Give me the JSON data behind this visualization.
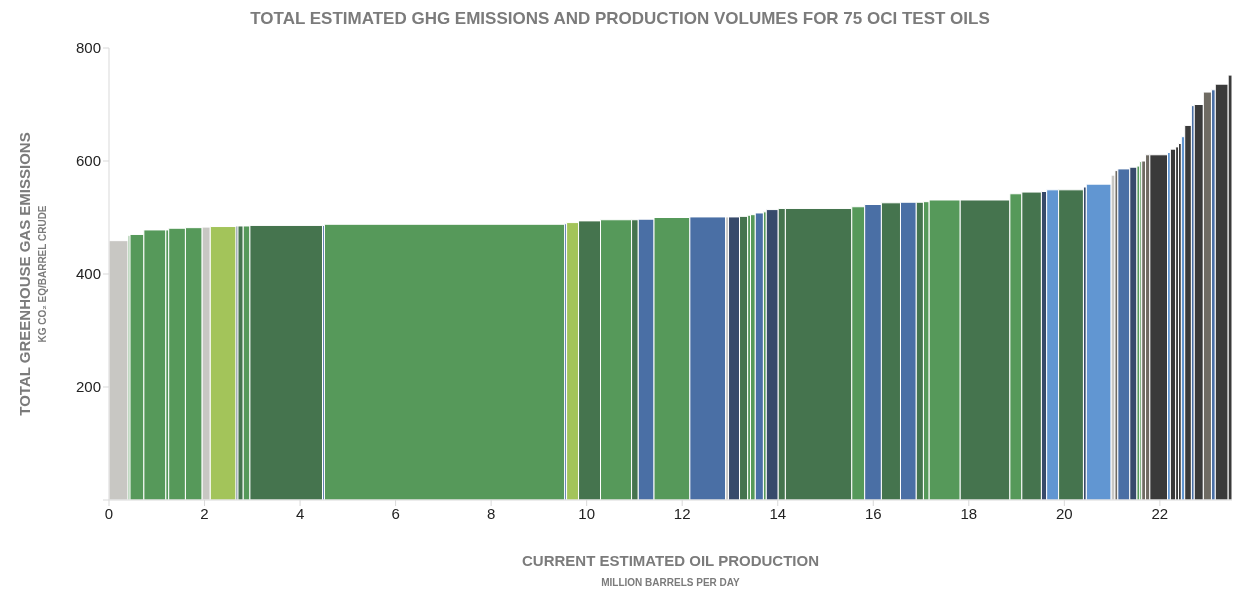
{
  "chart_data": {
    "type": "histogram",
    "title": "TOTAL ESTIMATED GHG EMISSIONS AND PRODUCTION VOLUMES FOR 75 OCI TEST OILS",
    "xlabel": "CURRENT ESTIMATED OIL PRODUCTION\nMILLION BARRELS PER DAY",
    "ylabel": "TOTAL GREENHOUSE GAS EMISSIONS\nKG CO₂ EQ/BARREL CRUDE",
    "bins": [
      0,
      0.4,
      0.44,
      0.73,
      1.19,
      1.25,
      1.6,
      1.95,
      2.12,
      2.66,
      2.7,
      2.81,
      2.95,
      4.47,
      4.51,
      9.54,
      9.58,
      9.83,
      10.29,
      10.94,
      11.08,
      11.41,
      12.16,
      12.91,
      12.97,
      13.2,
      13.37,
      13.43,
      13.53,
      13.7,
      13.76,
      14.01,
      14.16,
      15.55,
      15.82,
      16.17,
      16.57,
      16.9,
      17.05,
      17.17,
      17.82,
      18.86,
      19.11,
      19.52,
      19.63,
      19.88,
      20.4,
      20.46,
      20.98,
      21.06,
      21.12,
      21.37,
      21.52,
      21.58,
      21.62,
      21.7,
      21.79,
      22.16,
      22.22,
      22.33,
      22.39,
      22.45,
      22.52,
      22.66,
      22.72,
      22.91,
      23.08,
      23.16,
      23.43,
      23.51
    ],
    "values": [
      459,
      468,
      470,
      478,
      478,
      481,
      482,
      483,
      484,
      485,
      485,
      485,
      486,
      486,
      488,
      489,
      491,
      494,
      496,
      496,
      497,
      500,
      501,
      501,
      501,
      502,
      504,
      505,
      508,
      510,
      514,
      516,
      516,
      519,
      523,
      526,
      527,
      527,
      528,
      531,
      531,
      542,
      545,
      546,
      549,
      549,
      554,
      559,
      575,
      583,
      586,
      589,
      591,
      599,
      600,
      611,
      611,
      615,
      621,
      625,
      631,
      643,
      663,
      698,
      700,
      722,
      726,
      736,
      752
    ],
    "colors": [
      "#c8c7c3",
      "#56995a",
      "#56995a",
      "#56995a",
      "#56995a",
      "#56995a",
      "#56995a",
      "#c8c7c3",
      "#a3c45a",
      "#374a6b",
      "#45744e",
      "#56995a",
      "#45744e",
      "#4a6fa5",
      "#56995a",
      "#4a6fa5",
      "#a3c45a",
      "#45744e",
      "#56995a",
      "#45744e",
      "#4a6fa5",
      "#56995a",
      "#4a6fa5",
      "#c8c7c3",
      "#374a6b",
      "#45744e",
      "#56995a",
      "#56995a",
      "#4a6fa5",
      "#56995a",
      "#374a6b",
      "#45744e",
      "#45744e",
      "#56995a",
      "#4a6fa5",
      "#45744e",
      "#4a6fa5",
      "#45744e",
      "#56995a",
      "#56995a",
      "#45744e",
      "#56995a",
      "#45744e",
      "#374a6b",
      "#6196d2",
      "#45744e",
      "#374a6b",
      "#6196d2",
      "#c8c7c3",
      "#6f6b63",
      "#4a6fa5",
      "#374a6b",
      "#56995a",
      "#56995a",
      "#6f6b63",
      "#6f6b63",
      "#3a3a3a",
      "#6196d2",
      "#3a3a3a",
      "#3a3a3a",
      "#3a3a3a",
      "#6196d2",
      "#3a3a3a",
      "#4a6fa5",
      "#3a3a3a",
      "#6f6b63",
      "#4a6fa5",
      "#3a3a3a",
      "#3a3a3a"
    ],
    "xlim": [
      0,
      23.51
    ],
    "xticks": [
      0,
      2,
      4,
      6,
      8,
      10,
      12,
      14,
      16,
      18,
      20,
      22
    ],
    "ylim": [
      0,
      800
    ],
    "yticks": [
      {
        "value": 0,
        "label": null
      },
      200,
      400,
      600,
      800
    ],
    "grid": false
  }
}
